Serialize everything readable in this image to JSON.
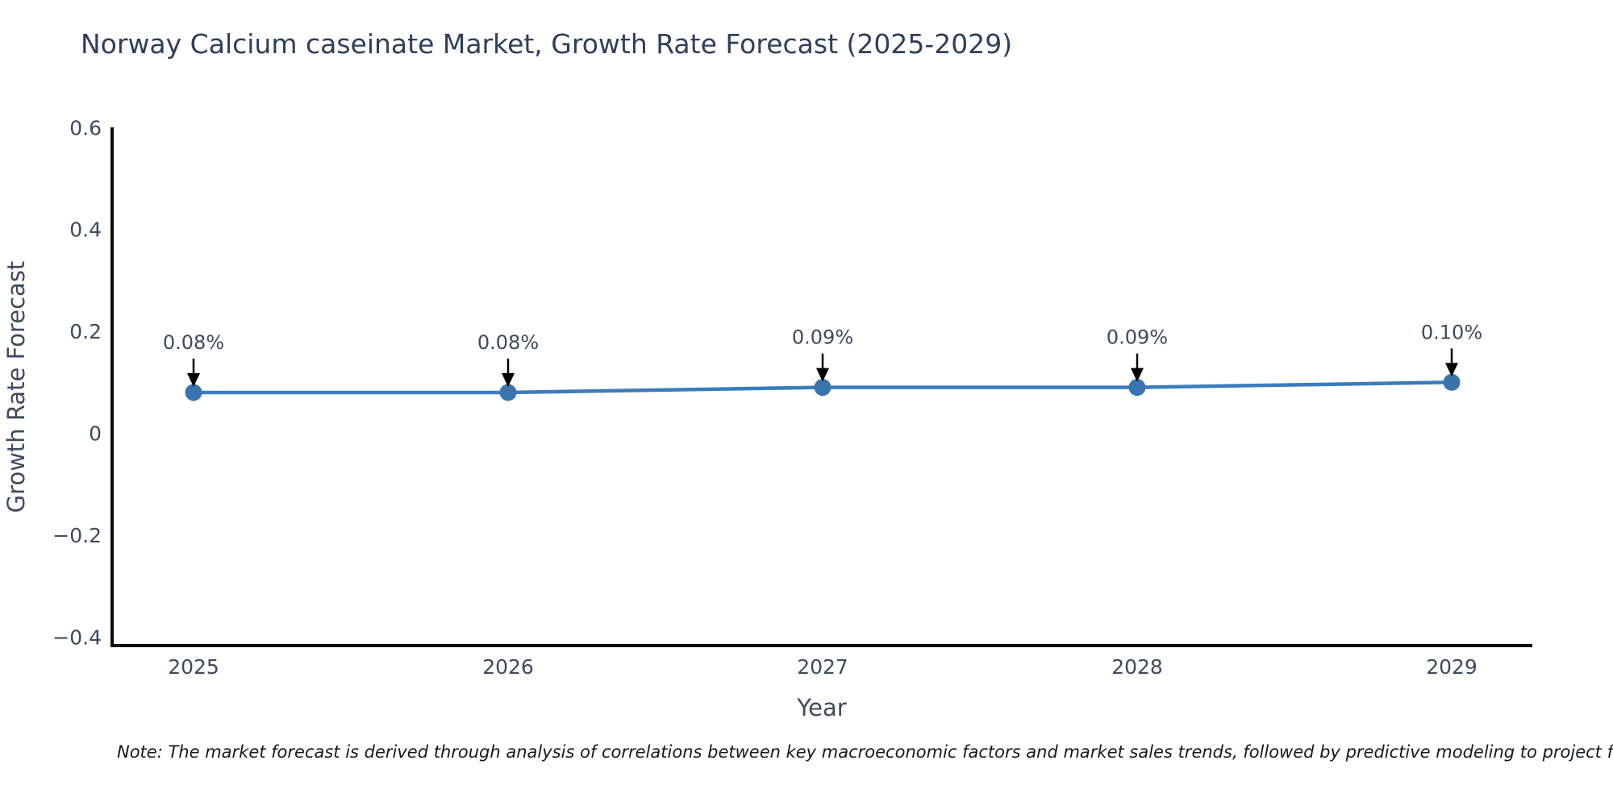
{
  "page": {
    "background": "#ffffff"
  },
  "chart": {
    "note": "Note: The market forecast is derived through analysis of correlations between key macroeconomic factors and market sales trends, followed by predictive modeling to project future sa"
  },
  "chart_data": {
    "type": "line",
    "title": "Norway Calcium caseinate Market, Growth Rate Forecast (2025-2029)",
    "xlabel": "Year",
    "ylabel": "Growth Rate Forecast",
    "categories": [
      "2025",
      "2026",
      "2027",
      "2028",
      "2029"
    ],
    "values": [
      0.08,
      0.08,
      0.09,
      0.09,
      0.1
    ],
    "point_labels": [
      "0.08%",
      "0.08%",
      "0.09%",
      "0.09%",
      "0.10%"
    ],
    "ylim": [
      -0.42,
      0.6
    ],
    "yticks": [
      0.6,
      0.4,
      0.2,
      0,
      -0.2,
      -0.4
    ],
    "ytick_labels": [
      "0.6",
      "0.4",
      "0.2",
      "0",
      "−0.2",
      "−0.4"
    ],
    "grid": false,
    "legend": false,
    "line_color": "#3b7cbd",
    "marker_color": "#3a74ae",
    "arrow_color": "#000000",
    "axis_color": "#0a0a0a",
    "text_color": "#3d4a5f",
    "title_color": "#2e3f5c",
    "note_color": "#15191e"
  }
}
